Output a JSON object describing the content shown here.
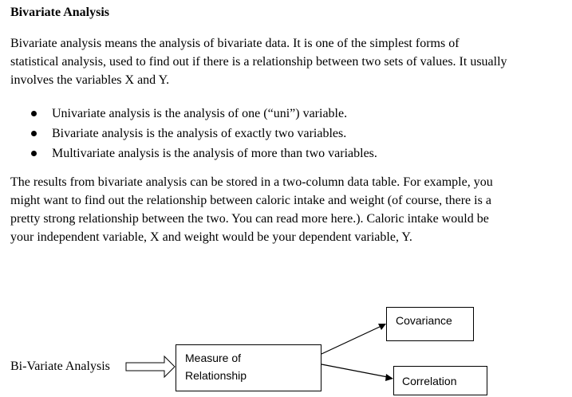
{
  "heading": "Bivariate Analysis",
  "paragraph1": {
    "lines": [
      "Bivariate analysis means the analysis of bivariate data. It is one of the simplest forms of",
      "statistical analysis, used to find out if there is a relationship between two sets of values. It usually",
      "involves the variables X and Y."
    ]
  },
  "bullets": [
    "Univariate analysis is the analysis of one (“uni”) variable.",
    "Bivariate analysis is the analysis of exactly two variables.",
    "Multivariate analysis is the analysis of more than two variables."
  ],
  "paragraph2": {
    "lines": [
      "The results from bivariate analysis can be stored in a two-column data table. For example, you",
      "might want to find out the relationship between caloric intake and weight (of course, there is a",
      "pretty strong relationship between the two. You can read more here.). Caloric intake would be",
      "your independent variable, X and weight would be your dependent variable, Y."
    ]
  },
  "diagram": {
    "source_label": "Bi-Variate Analysis",
    "center_box": {
      "lines": [
        "Measure of",
        "Relationship"
      ]
    },
    "branch_top": "Covariance",
    "branch_bottom": "Correlation"
  }
}
